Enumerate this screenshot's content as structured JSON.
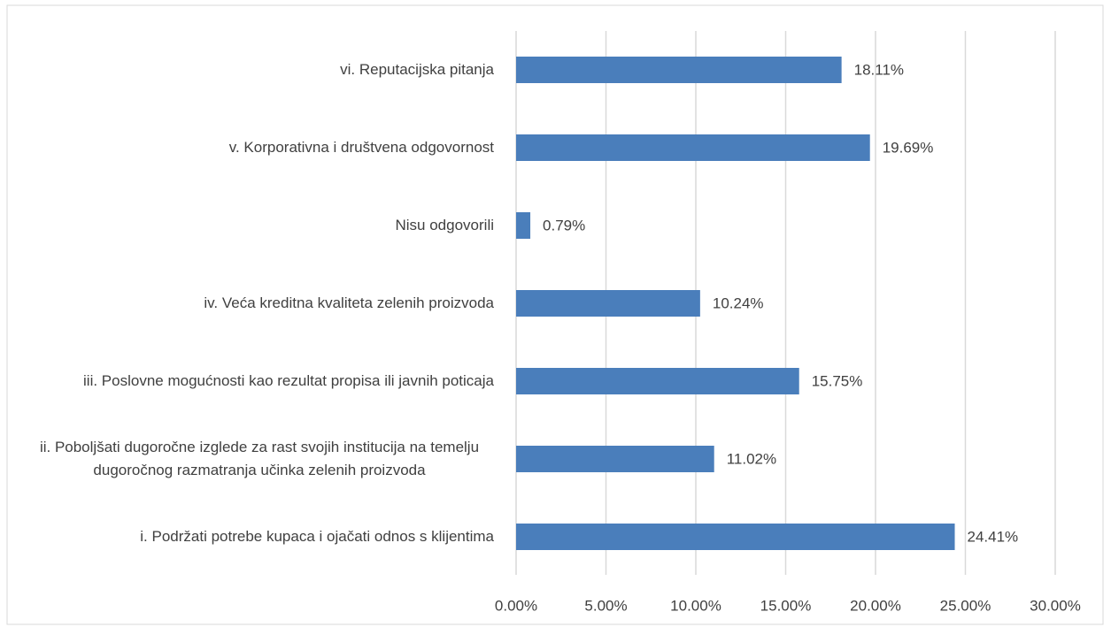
{
  "chart_data": {
    "type": "bar",
    "orientation": "horizontal",
    "categories": [
      "vi. Reputacijska pitanja",
      "v. Korporativna i društvena odgovornost",
      "Nisu odgovorili",
      "iv. Veća kreditna kvaliteta zelenih proizvoda",
      "iii. Poslovne mogućnosti kao rezultat propisa ili javnih poticaja",
      "ii. Poboljšati dugoročne izglede za rast svojih institucija na temelju dugoročnog razmatranja učinka zelenih proizvoda",
      "i. Podržati potrebe kupaca i ojačati odnos s klijentima"
    ],
    "values": [
      18.11,
      19.69,
      0.79,
      10.24,
      15.75,
      11.02,
      24.41
    ],
    "value_labels": [
      "18.11%",
      "19.69%",
      "0.79%",
      "10.24%",
      "15.75%",
      "11.02%",
      "24.41%"
    ],
    "color": "#4a7ebb",
    "xlim": [
      0,
      30
    ],
    "xticks": [
      {
        "value": 0,
        "label": "0.00%"
      },
      {
        "value": 5,
        "label": "5.00%"
      },
      {
        "value": 10,
        "label": "10.00%"
      },
      {
        "value": 15,
        "label": "15.00%"
      },
      {
        "value": 20,
        "label": "20.00%"
      },
      {
        "value": 25,
        "label": "25.00%"
      },
      {
        "value": 30,
        "label": "30.00%"
      }
    ],
    "grid": true
  }
}
